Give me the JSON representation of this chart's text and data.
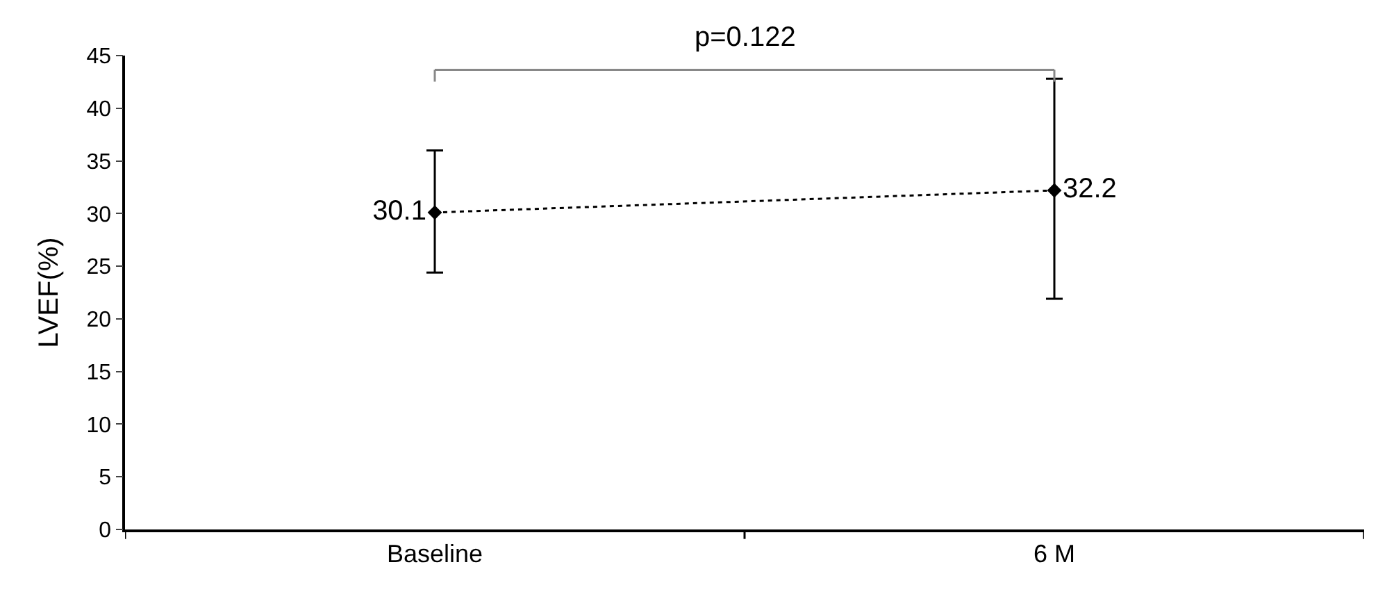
{
  "chart_data": {
    "type": "line",
    "ylabel": "LVEF(%)",
    "categories": [
      "Baseline",
      "6 M"
    ],
    "series": [
      {
        "color": "#000000",
        "values": [
          30.1,
          32.2
        ],
        "errors": [
          [
            24.4,
            36.0
          ],
          [
            21.9,
            42.8
          ]
        ]
      }
    ],
    "ylim": [
      0,
      45
    ],
    "yticks": [
      0,
      5,
      10,
      15,
      20,
      25,
      30,
      35,
      40,
      45
    ],
    "marker": "diamond",
    "line_style": "dotted",
    "data_labels": true,
    "legend": false,
    "annotations": [
      "p=0.122"
    ]
  }
}
